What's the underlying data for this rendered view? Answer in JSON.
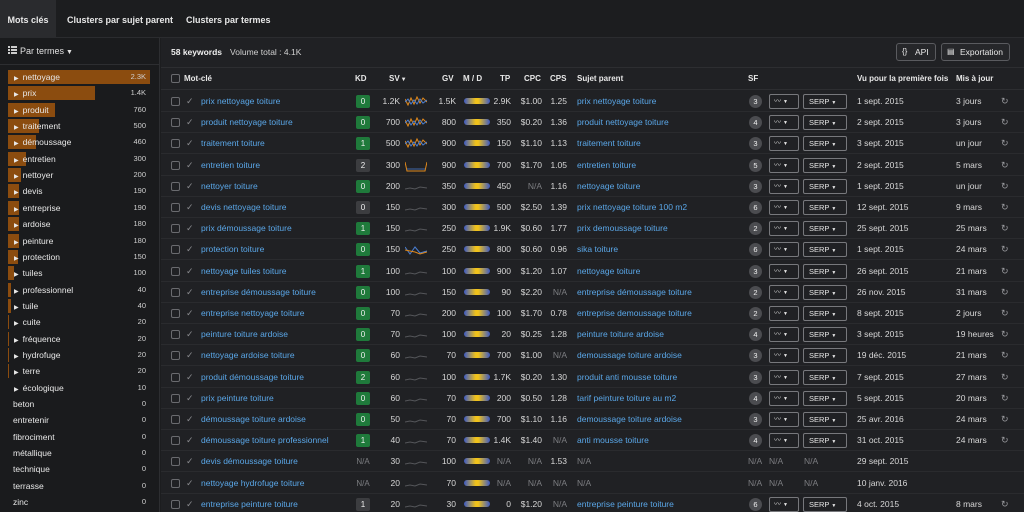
{
  "tabs": [
    {
      "label": "Mots clés",
      "active": true
    },
    {
      "label": "Clusters par sujet parent",
      "active": false
    },
    {
      "label": "Clusters par termes",
      "active": false
    }
  ],
  "sidebar": {
    "header": "Par termes",
    "terms": [
      {
        "label": "nettoyage",
        "count": "2.3K",
        "has_children": true,
        "share": 1.0
      },
      {
        "label": "prix",
        "count": "1.4K",
        "has_children": true,
        "share": 0.61
      },
      {
        "label": "produit",
        "count": "760",
        "has_children": true,
        "share": 0.33
      },
      {
        "label": "traitement",
        "count": "500",
        "has_children": true,
        "share": 0.22
      },
      {
        "label": "démoussage",
        "count": "460",
        "has_children": true,
        "share": 0.2
      },
      {
        "label": "entretien",
        "count": "300",
        "has_children": true,
        "share": 0.13
      },
      {
        "label": "nettoyer",
        "count": "200",
        "has_children": true,
        "share": 0.09
      },
      {
        "label": "devis",
        "count": "190",
        "has_children": true,
        "share": 0.08
      },
      {
        "label": "entreprise",
        "count": "190",
        "has_children": true,
        "share": 0.08
      },
      {
        "label": "ardoise",
        "count": "180",
        "has_children": true,
        "share": 0.08
      },
      {
        "label": "peinture",
        "count": "180",
        "has_children": true,
        "share": 0.08
      },
      {
        "label": "protection",
        "count": "150",
        "has_children": true,
        "share": 0.07
      },
      {
        "label": "tuiles",
        "count": "100",
        "has_children": true,
        "share": 0.04
      },
      {
        "label": "professionnel",
        "count": "40",
        "has_children": true,
        "share": 0.02
      },
      {
        "label": "tuile",
        "count": "40",
        "has_children": true,
        "share": 0.02
      },
      {
        "label": "cuite",
        "count": "20",
        "has_children": true,
        "share": 0.01
      },
      {
        "label": "fréquence",
        "count": "20",
        "has_children": true,
        "share": 0.01
      },
      {
        "label": "hydrofuge",
        "count": "20",
        "has_children": true,
        "share": 0.01
      },
      {
        "label": "terre",
        "count": "20",
        "has_children": true,
        "share": 0.01
      },
      {
        "label": "écologique",
        "count": "10",
        "has_children": true,
        "share": 0.0
      },
      {
        "label": "beton",
        "count": "0",
        "has_children": false,
        "share": 0.0
      },
      {
        "label": "entretenir",
        "count": "0",
        "has_children": false,
        "share": 0.0
      },
      {
        "label": "fibrociment",
        "count": "0",
        "has_children": false,
        "share": 0.0
      },
      {
        "label": "métallique",
        "count": "0",
        "has_children": false,
        "share": 0.0
      },
      {
        "label": "technique",
        "count": "0",
        "has_children": false,
        "share": 0.0
      },
      {
        "label": "terrasse",
        "count": "0",
        "has_children": false,
        "share": 0.0
      },
      {
        "label": "zinc",
        "count": "0",
        "has_children": false,
        "share": 0.0
      }
    ]
  },
  "summary": {
    "keywords": "58 keywords",
    "volume": "Volume total : 4.1K"
  },
  "actions": {
    "api_label": "API",
    "export_label": "Exportation"
  },
  "columns": {
    "keyword": "Mot-clé",
    "kd": "KD",
    "sv": "SV",
    "gv": "GV",
    "md": "M / D",
    "tp": "TP",
    "cpc": "CPC",
    "cps": "CPS",
    "parent": "Sujet parent",
    "sf": "SF",
    "first_seen": "Vu pour la première fois",
    "updated": "Mis à jour"
  },
  "rows": [
    {
      "keyword": "prix nettoyage toiture",
      "kd": "0",
      "kd_style": "g",
      "sv": "1.2K",
      "trend": "orange-blue",
      "gv": "1.5K",
      "tp": "2.9K",
      "cpc": "$1.00",
      "cps": "1.25",
      "parent": "prix nettoyage toiture",
      "sf": "3",
      "first_seen": "1 sept. 2015",
      "updated": "3 jours"
    },
    {
      "keyword": "produit nettoyage toiture",
      "kd": "0",
      "kd_style": "g",
      "sv": "700",
      "trend": "orange-blue",
      "gv": "800",
      "tp": "350",
      "cpc": "$0.20",
      "cps": "1.36",
      "parent": "produit nettoyage toiture",
      "sf": "4",
      "first_seen": "2 sept. 2015",
      "updated": "3 jours"
    },
    {
      "keyword": "traitement toiture",
      "kd": "1",
      "kd_style": "g",
      "sv": "500",
      "trend": "orange-blue",
      "gv": "900",
      "tp": "150",
      "cpc": "$1.10",
      "cps": "1.13",
      "parent": "traitement toiture",
      "sf": "3",
      "first_seen": "3 sept. 2015",
      "updated": "un jour"
    },
    {
      "keyword": "entretien toiture",
      "kd": "2",
      "kd_style": "d",
      "sv": "300",
      "trend": "orange",
      "gv": "900",
      "tp": "700",
      "cpc": "$1.70",
      "cps": "1.05",
      "parent": "entretien toiture",
      "sf": "5",
      "first_seen": "2 sept. 2015",
      "updated": "5 mars"
    },
    {
      "keyword": "nettoyer toiture",
      "kd": "0",
      "kd_style": "g",
      "sv": "200",
      "trend": "grey",
      "gv": "350",
      "tp": "450",
      "cpc": "N/A",
      "cps": "1.16",
      "parent": "nettoyage toiture",
      "sf": "3",
      "first_seen": "1 sept. 2015",
      "updated": "un jour"
    },
    {
      "keyword": "devis nettoyage toiture",
      "kd": "0",
      "kd_style": "d",
      "sv": "150",
      "trend": "grey",
      "gv": "300",
      "tp": "500",
      "cpc": "$2.50",
      "cps": "1.39",
      "parent": "prix nettoyage toiture 100 m2",
      "sf": "6",
      "first_seen": "12 sept. 2015",
      "updated": "9 mars"
    },
    {
      "keyword": "prix démoussage toiture",
      "kd": "1",
      "kd_style": "g",
      "sv": "150",
      "trend": "grey",
      "gv": "250",
      "tp": "1.9K",
      "cpc": "$0.60",
      "cps": "1.77",
      "parent": "prix demoussage toiture",
      "sf": "2",
      "first_seen": "25 sept. 2015",
      "updated": "25 mars"
    },
    {
      "keyword": "protection toiture",
      "kd": "0",
      "kd_style": "g",
      "sv": "150",
      "trend": "blue-orange",
      "gv": "250",
      "tp": "800",
      "cpc": "$0.60",
      "cps": "0.96",
      "parent": "sika toiture",
      "sf": "6",
      "first_seen": "1 sept. 2015",
      "updated": "24 mars"
    },
    {
      "keyword": "nettoyage tuiles toiture",
      "kd": "1",
      "kd_style": "g",
      "sv": "100",
      "trend": "grey",
      "gv": "100",
      "tp": "900",
      "cpc": "$1.20",
      "cps": "1.07",
      "parent": "nettoyage toiture",
      "sf": "3",
      "first_seen": "26 sept. 2015",
      "updated": "21 mars"
    },
    {
      "keyword": "entreprise démoussage toiture",
      "kd": "0",
      "kd_style": "g",
      "sv": "100",
      "trend": "grey",
      "gv": "150",
      "tp": "90",
      "cpc": "$2.20",
      "cps": "N/A",
      "parent": "entreprise démoussage toiture",
      "sf": "2",
      "first_seen": "26 nov. 2015",
      "updated": "31 mars"
    },
    {
      "keyword": "entreprise nettoyage toiture",
      "kd": "0",
      "kd_style": "g",
      "sv": "70",
      "trend": "grey",
      "gv": "200",
      "tp": "100",
      "cpc": "$1.70",
      "cps": "0.78",
      "parent": "entreprise demoussage toiture",
      "sf": "2",
      "first_seen": "8 sept. 2015",
      "updated": "2 jours"
    },
    {
      "keyword": "peinture toiture ardoise",
      "kd": "0",
      "kd_style": "g",
      "sv": "70",
      "trend": "grey",
      "gv": "100",
      "tp": "20",
      "cpc": "$0.25",
      "cps": "1.28",
      "parent": "peinture toiture ardoise",
      "sf": "4",
      "first_seen": "3 sept. 2015",
      "updated": "19 heures"
    },
    {
      "keyword": "nettoyage ardoise toiture",
      "kd": "0",
      "kd_style": "g",
      "sv": "60",
      "trend": "grey",
      "gv": "70",
      "tp": "700",
      "cpc": "$1.00",
      "cps": "N/A",
      "parent": "demoussage toiture ardoise",
      "sf": "3",
      "first_seen": "19 déc. 2015",
      "updated": "21 mars"
    },
    {
      "keyword": "produit démoussage toiture",
      "kd": "2",
      "kd_style": "g",
      "sv": "60",
      "trend": "grey",
      "gv": "100",
      "tp": "1.7K",
      "cpc": "$0.20",
      "cps": "1.30",
      "parent": "produit anti mousse toiture",
      "sf": "3",
      "first_seen": "7 sept. 2015",
      "updated": "27 mars"
    },
    {
      "keyword": "prix peinture toiture",
      "kd": "0",
      "kd_style": "g",
      "sv": "60",
      "trend": "grey",
      "gv": "70",
      "tp": "200",
      "cpc": "$0.50",
      "cps": "1.28",
      "parent": "tarif peinture toiture au m2",
      "sf": "4",
      "first_seen": "5 sept. 2015",
      "updated": "20 mars"
    },
    {
      "keyword": "démoussage toiture ardoise",
      "kd": "0",
      "kd_style": "g",
      "sv": "50",
      "trend": "grey",
      "gv": "70",
      "tp": "700",
      "cpc": "$1.10",
      "cps": "1.16",
      "parent": "demoussage toiture ardoise",
      "sf": "3",
      "first_seen": "25 avr. 2016",
      "updated": "24 mars"
    },
    {
      "keyword": "démoussage toiture professionnel",
      "kd": "1",
      "kd_style": "g",
      "sv": "40",
      "trend": "grey",
      "gv": "70",
      "tp": "1.4K",
      "cpc": "$1.40",
      "cps": "N/A",
      "parent": "anti mousse toiture",
      "sf": "4",
      "first_seen": "31 oct. 2015",
      "updated": "24 mars"
    },
    {
      "keyword": "devis démoussage toiture",
      "kd": "N/A",
      "kd_style": "na",
      "sv": "30",
      "trend": "grey",
      "gv": "100",
      "tp": "N/A",
      "cpc": "N/A",
      "cps": "1.53",
      "parent": "N/A",
      "sf": "N/A",
      "first_seen": "29 sept. 2015",
      "updated": ""
    },
    {
      "keyword": "nettoyage hydrofuge toiture",
      "kd": "N/A",
      "kd_style": "na",
      "sv": "20",
      "trend": "grey",
      "gv": "70",
      "tp": "N/A",
      "cpc": "N/A",
      "cps": "N/A",
      "parent": "N/A",
      "sf": "N/A",
      "first_seen": "10 janv. 2016",
      "updated": ""
    },
    {
      "keyword": "entreprise peinture toiture",
      "kd": "1",
      "kd_style": "d",
      "sv": "20",
      "trend": "grey",
      "gv": "30",
      "tp": "0",
      "cpc": "$1.20",
      "cps": "N/A",
      "parent": "entreprise peinture toiture",
      "sf": "6",
      "first_seen": "4 oct. 2015",
      "updated": "8 mars"
    }
  ],
  "controls": {
    "serp_label": "SERP",
    "na": "N/A"
  },
  "icons": {
    "sidebar_header": "list-icon",
    "api": "code-braces-icon",
    "export": "document-icon",
    "checkbox": "checkbox-icon",
    "check": "checkmark-icon",
    "refresh": "refresh-icon",
    "trend": "trend-line-icon"
  },
  "colors": {
    "accent_bar": "#8b4c0f",
    "link": "#5aa7e8",
    "kd_green": "#1f7a3b",
    "background": "#1c1d1f"
  }
}
